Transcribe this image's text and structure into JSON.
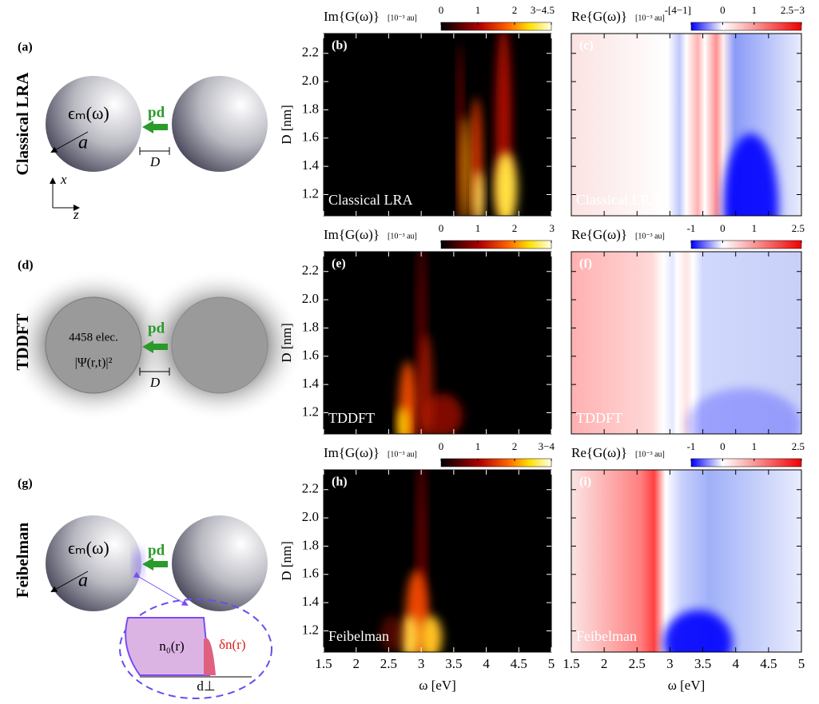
{
  "x_axis": {
    "label": "ω [eV]",
    "lim": [
      1.5,
      5
    ],
    "ticks": [
      1.5,
      2,
      2.5,
      3,
      3.5,
      4,
      4.5,
      5
    ]
  },
  "y_axis": {
    "label": "D [nm]",
    "lim": [
      1.05,
      2.34
    ],
    "ticks": [
      1.2,
      1.4,
      1.6,
      1.8,
      {
        "value": 2,
        "label": "2.0"
      },
      2.2
    ]
  },
  "rows": [
    {
      "method": "Classical LRA",
      "tags": [
        "(a)",
        "(b)",
        "(c)"
      ],
      "im_colorbar": {
        "title": "Im{G(ω)}",
        "unit": "[10⁻³ au]",
        "lim": [
          0,
          3
        ],
        "ticks": [
          0,
          1,
          2,
          {
            "value": 3,
            "label": "3−4.5"
          }
        ]
      },
      "re_colorbar": {
        "title": "Re{G(ω)}",
        "unit": "[10⁻³ au]",
        "lim": [
          -1,
          2.5
        ],
        "ticks": [
          {
            "value": -1,
            "label": "-[4−1]"
          },
          0,
          1,
          {
            "value": 2.5,
            "label": "2.5−3"
          }
        ]
      },
      "schematic": {
        "permittivity": "ϵₘ(ω)",
        "radius": "a",
        "dipole": "pd",
        "gap": "D",
        "axis_x": "x",
        "axis_z": "z"
      }
    },
    {
      "method": "TDDFT",
      "tags": [
        "(d)",
        "(e)",
        "(f)"
      ],
      "im_colorbar": {
        "title": "Im{G(ω)}",
        "unit": "[10⁻³ au]",
        "lim": [
          0,
          3
        ],
        "ticks": [
          0,
          1,
          2,
          3
        ]
      },
      "re_colorbar": {
        "title": "Re{G(ω)}",
        "unit": "[10⁻³ au]",
        "lim": [
          -1,
          2.5
        ],
        "ticks": [
          -1,
          0,
          1,
          2.5
        ]
      },
      "schematic": {
        "electrons": "4458 elec.",
        "wavefunction": "|Ψ(r,t)|²",
        "dipole": "pd",
        "gap": "D"
      }
    },
    {
      "method": "Feibelman",
      "tags": [
        "(g)",
        "(h)",
        "(i)"
      ],
      "im_colorbar": {
        "title": "Im{G(ω)}",
        "unit": "[10⁻³ au]",
        "lim": [
          0,
          3
        ],
        "ticks": [
          0,
          1,
          2,
          {
            "value": 3,
            "label": "3−4"
          }
        ]
      },
      "re_colorbar": {
        "title": "Re{G(ω)}",
        "unit": "[10⁻³ au]",
        "lim": [
          -1,
          2.5
        ],
        "ticks": [
          -1,
          0,
          1,
          2.5
        ]
      },
      "schematic": {
        "permittivity": "ϵₘ(ω)",
        "radius": "a",
        "dipole": "pd",
        "density": "n₀(r)",
        "induced": "δn(r)",
        "centroid": "d⊥"
      }
    }
  ]
}
